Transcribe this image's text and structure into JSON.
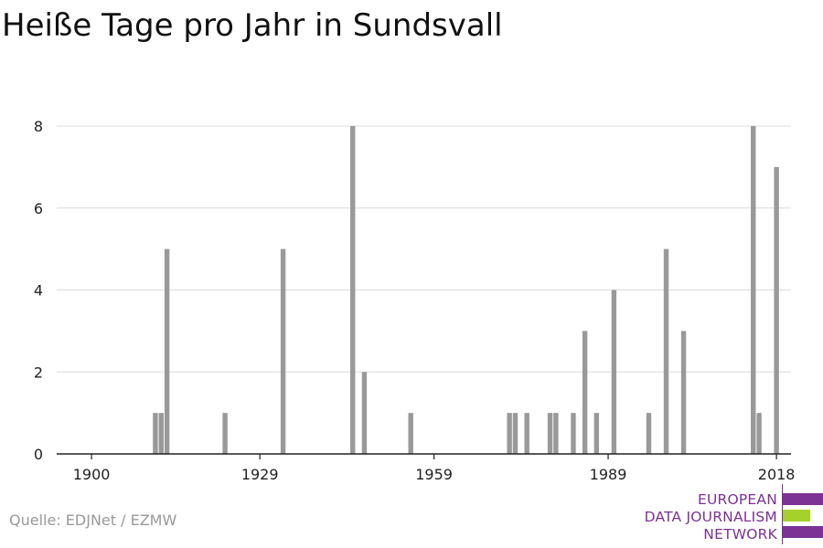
{
  "title": "Heiße Tage pro Jahr in Sundsvall",
  "source": "Quelle: EDJNet / EZMW",
  "logo": {
    "lines": [
      "EUROPEAN",
      "DATA JOURNALISM",
      "NETWORK"
    ],
    "colors": {
      "purple": "#7b3294",
      "green": "#a6d02a"
    }
  },
  "chart_data": {
    "type": "bar",
    "title": "Heiße Tage pro Jahr in Sundsvall",
    "xlabel": "",
    "ylabel": "",
    "xlim": [
      1894,
      2020.5
    ],
    "ylim": [
      0,
      8
    ],
    "xticks": [
      1900,
      1929,
      1959,
      1989,
      2018
    ],
    "yticks": [
      0,
      2,
      4,
      6,
      8
    ],
    "grid": true,
    "bar_color": "#999999",
    "x": [
      1911,
      1912,
      1913,
      1923,
      1933,
      1945,
      1947,
      1955,
      1972,
      1973,
      1975,
      1979,
      1980,
      1983,
      1985,
      1987,
      1990,
      1996,
      1999,
      2002,
      2014,
      2015,
      2018
    ],
    "values": [
      1,
      1,
      5,
      1,
      5,
      8,
      2,
      1,
      1,
      1,
      1,
      1,
      1,
      1,
      3,
      1,
      4,
      1,
      5,
      3,
      8,
      1,
      7
    ]
  }
}
